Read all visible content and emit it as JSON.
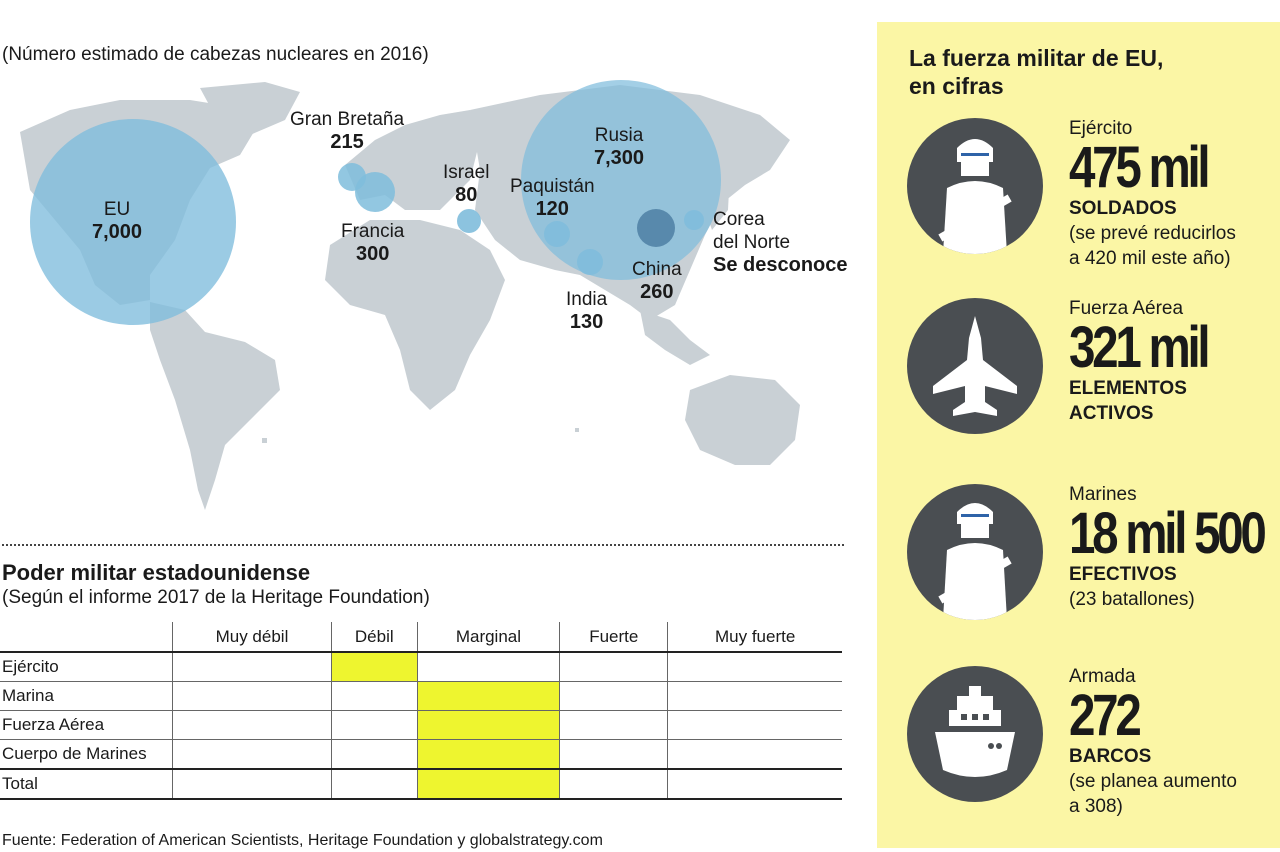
{
  "map": {
    "subtitle": "(Número estimado de cabezas nucleares en 2016)",
    "countries": [
      {
        "name": "EU",
        "value": "7,000"
      },
      {
        "name": "Gran Bretaña",
        "value": "215"
      },
      {
        "name": "Francia",
        "value": "300"
      },
      {
        "name": "Israel",
        "value": "80"
      },
      {
        "name": "Paquistán",
        "value": "120"
      },
      {
        "name": "Rusia",
        "value": "7,300"
      },
      {
        "name": "China",
        "value": "260"
      },
      {
        "name": "India",
        "value": "130"
      },
      {
        "name": "Corea del Norte",
        "line1": "Corea",
        "line2": "del Norte",
        "value": "Se desconoce"
      }
    ],
    "colors": {
      "land": "#c9d0d5",
      "bubble": "#7fbddc",
      "bubble_dark": "#4d7fa3"
    }
  },
  "power": {
    "title": "Poder militar estadounidense",
    "subtitle": "(Según el informe 2017 de la Heritage Foundation)",
    "levels": [
      "Muy débil",
      "Débil",
      "Marginal",
      "Fuerte",
      "Muy fuerte"
    ],
    "rows": [
      {
        "label": "Ejército",
        "rating": "Débil",
        "level": 2
      },
      {
        "label": "Marina",
        "rating": "Marginal",
        "level": 3
      },
      {
        "label": "Fuerza Aérea",
        "rating": "Marginal",
        "level": 3
      },
      {
        "label": "Cuerpo de Marines",
        "rating": "Marginal",
        "level": 3
      },
      {
        "label": "Total",
        "rating": "Marginal",
        "level": 3
      }
    ],
    "highlight_color": "#eef52f"
  },
  "source": "Fuente: Federation of American Scientists, Heritage Foundation y globalstrategy.com",
  "panel": {
    "title_line1": "La fuerza militar de EU,",
    "title_line2": "en cifras",
    "background": "#fbf6a5",
    "stats": [
      {
        "icon": "soldier-icon",
        "name": "Ejército",
        "number": "475 mil",
        "unit": "SOLDADOS",
        "note_line1": "(se prevé reducirlos",
        "note_line2": "a 420 mil este año)"
      },
      {
        "icon": "fighter-jet-icon",
        "name": "Fuerza Aérea",
        "number": "321 mil",
        "unit_line1": "ELEMENTOS",
        "unit_line2": "ACTIVOS"
      },
      {
        "icon": "marine-icon",
        "name": "Marines",
        "number": "18 mil 500",
        "unit": "EFECTIVOS",
        "note_line1": "(23 batallones)"
      },
      {
        "icon": "ship-icon",
        "name": "Armada",
        "number": "272",
        "unit": "BARCOS",
        "note_line1": "(se planea aumento",
        "note_line2": "a 308)"
      }
    ]
  }
}
